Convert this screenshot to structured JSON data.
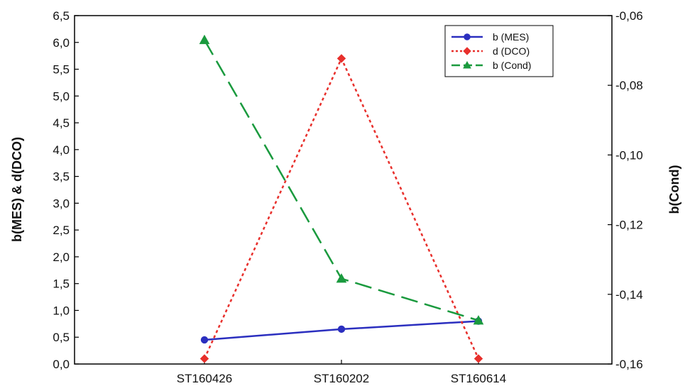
{
  "chart_data": {
    "type": "line",
    "categories": [
      "ST160426",
      "ST160202",
      "ST160614"
    ],
    "ylabel_left": "b(MES) & d(DCO)",
    "ylabel_right": "b(Cond)",
    "left_axis": {
      "ylim": [
        0.0,
        6.5
      ],
      "ticks": [
        "0,0",
        "0,5",
        "1,0",
        "1,5",
        "2,0",
        "2,5",
        "3,0",
        "3,5",
        "4,0",
        "4,5",
        "5,0",
        "5,5",
        "6,0",
        "6,5"
      ]
    },
    "right_axis": {
      "ylim": [
        -0.16,
        -0.06
      ],
      "ticks": [
        "-0,16",
        "-0,14",
        "-0,12",
        "-0,10",
        "-0,08",
        "-0,06"
      ]
    },
    "grid": false,
    "legend_position": "top-right",
    "series": [
      {
        "name": "b (MES)",
        "axis": "left",
        "color": "#2b2fbf",
        "line_style": "solid",
        "marker": "circle",
        "values": [
          0.45,
          0.65,
          0.8
        ]
      },
      {
        "name": "d (DCO)",
        "axis": "left",
        "color": "#e8302c",
        "line_style": "dotted",
        "marker": "diamond",
        "values": [
          0.1,
          5.7,
          0.1
        ]
      },
      {
        "name": "b (Cond)",
        "axis": "right",
        "color": "#1a9a3e",
        "line_style": "dashed",
        "marker": "triangle",
        "values": [
          -0.067,
          -0.1355,
          -0.1475
        ]
      }
    ]
  }
}
